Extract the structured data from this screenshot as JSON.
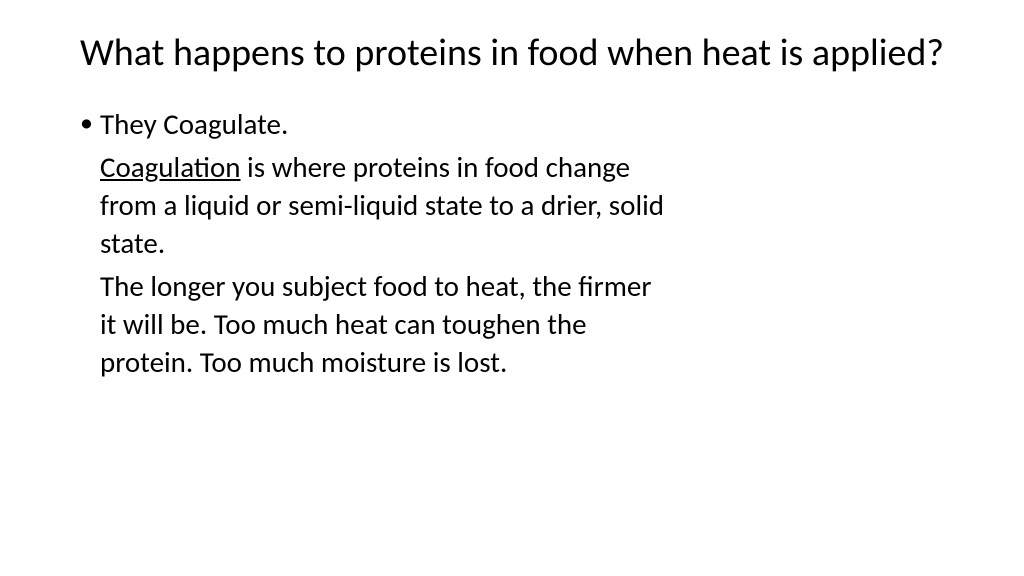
{
  "slide": {
    "title": "What happens to proteins in food when heat is applied?",
    "bullet": "They Coagulate.",
    "definition_term": "Coagulation",
    "definition_rest": " is where proteins in food change from a liquid or semi-liquid state to a drier, solid state.",
    "explanation": "The longer you subject food to heat, the firmer it will be.  Too much heat can toughen the protein.  Too much moisture is lost."
  },
  "style": {
    "background_color": "#ffffff",
    "text_color": "#000000",
    "title_fontsize": 38,
    "body_fontsize": 29,
    "font_family": "Calibri"
  }
}
